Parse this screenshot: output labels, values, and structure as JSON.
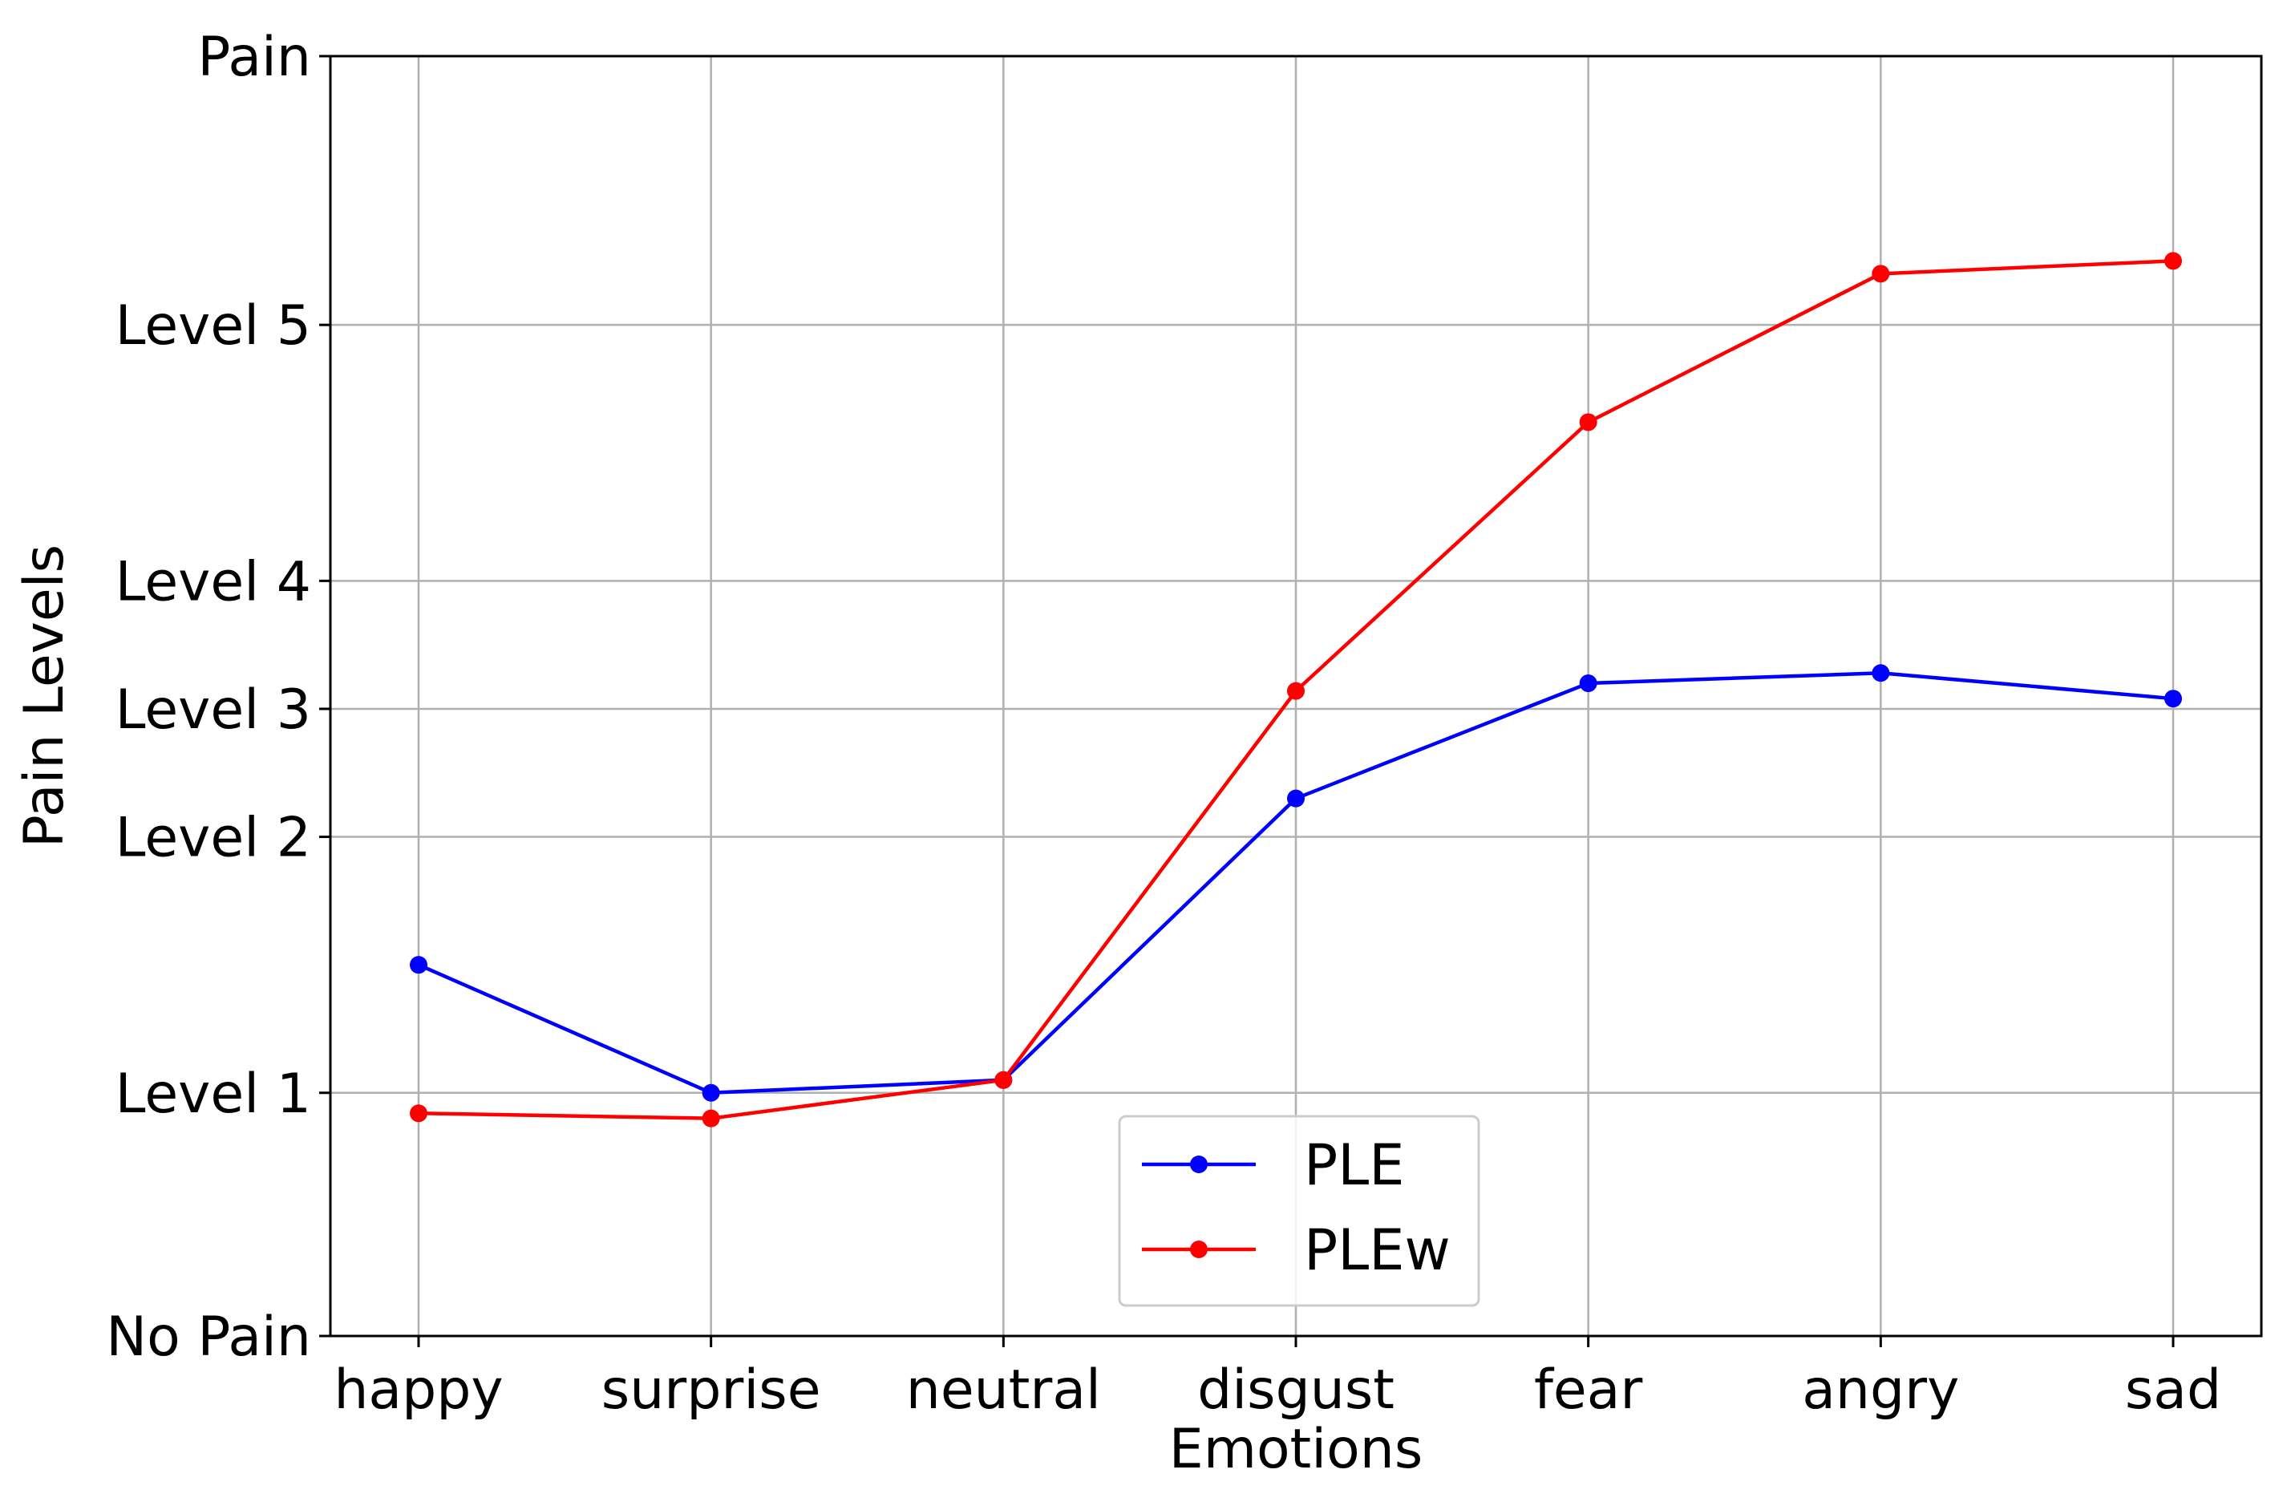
{
  "chart_data": {
    "type": "line",
    "categories": [
      "happy",
      "surprise",
      "neutral",
      "disgust",
      "fear",
      "angry",
      "sad"
    ],
    "xlabel": "Emotions",
    "ylabel": "Pain Levels",
    "ylim": [
      0,
      5
    ],
    "y_ticks": [
      {
        "value": 0,
        "label": "No Pain"
      },
      {
        "value": 0.95,
        "label": "Level 1"
      },
      {
        "value": 1.95,
        "label": "Level 2"
      },
      {
        "value": 2.45,
        "label": "Level 3"
      },
      {
        "value": 2.95,
        "label": "Level 4"
      },
      {
        "value": 3.95,
        "label": "Level 5"
      },
      {
        "value": 5,
        "label": "Pain"
      }
    ],
    "grid": true,
    "legend_position": "lower-center",
    "series": [
      {
        "name": "PLE",
        "color": "#0000ff",
        "values": [
          1.45,
          0.95,
          1.0,
          2.1,
          2.55,
          2.59,
          2.49
        ]
      },
      {
        "name": "PLEw",
        "color": "#ff0000",
        "values": [
          0.87,
          0.85,
          1.0,
          2.52,
          3.57,
          4.15,
          4.2
        ]
      }
    ]
  }
}
